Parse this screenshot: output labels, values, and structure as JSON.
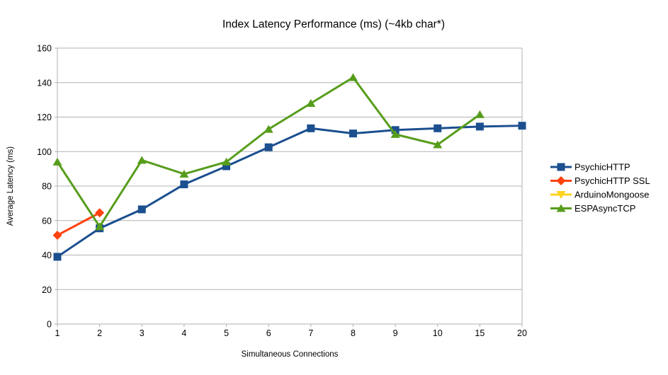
{
  "chart_data": {
    "type": "line",
    "title": "Index Latency Performance (ms) (~4kb char*)",
    "xlabel": "Simultaneous Connections",
    "ylabel": "Average Latency (ms)",
    "categories": [
      "1",
      "2",
      "3",
      "4",
      "5",
      "6",
      "7",
      "8",
      "9",
      "10",
      "15",
      "20"
    ],
    "ylim": [
      0,
      160
    ],
    "ytick_step": 20,
    "yticks": [
      "0",
      "20",
      "40",
      "60",
      "80",
      "100",
      "120",
      "140",
      "160"
    ],
    "grid": true,
    "legend_position": "right",
    "axis_color": "#b0b0b0",
    "grid_color": "#b3b3b3",
    "series": [
      {
        "name": "PsychicHTTP",
        "color": "#1b4f8f",
        "marker": "square",
        "values": [
          39,
          55.5,
          66.5,
          81,
          91.5,
          102.5,
          113.5,
          110.5,
          112.5,
          113.5,
          114.5,
          115
        ]
      },
      {
        "name": "PsychicHTTP SSL",
        "color": "#ff420e",
        "marker": "diamond",
        "values": [
          51.5,
          64.5,
          null,
          null,
          null,
          null,
          null,
          null,
          null,
          null,
          null,
          null
        ]
      },
      {
        "name": "ArduinoMongoose",
        "color": "#ffd320",
        "marker": "triangle-down",
        "values": [
          null,
          null,
          null,
          null,
          null,
          null,
          null,
          null,
          null,
          null,
          null,
          null
        ]
      },
      {
        "name": "ESPAsyncTCP",
        "color": "#579d1c",
        "marker": "triangle-up",
        "values": [
          94,
          56.5,
          95,
          87,
          94,
          113,
          128,
          143,
          110,
          104,
          121.5,
          null
        ]
      }
    ]
  }
}
